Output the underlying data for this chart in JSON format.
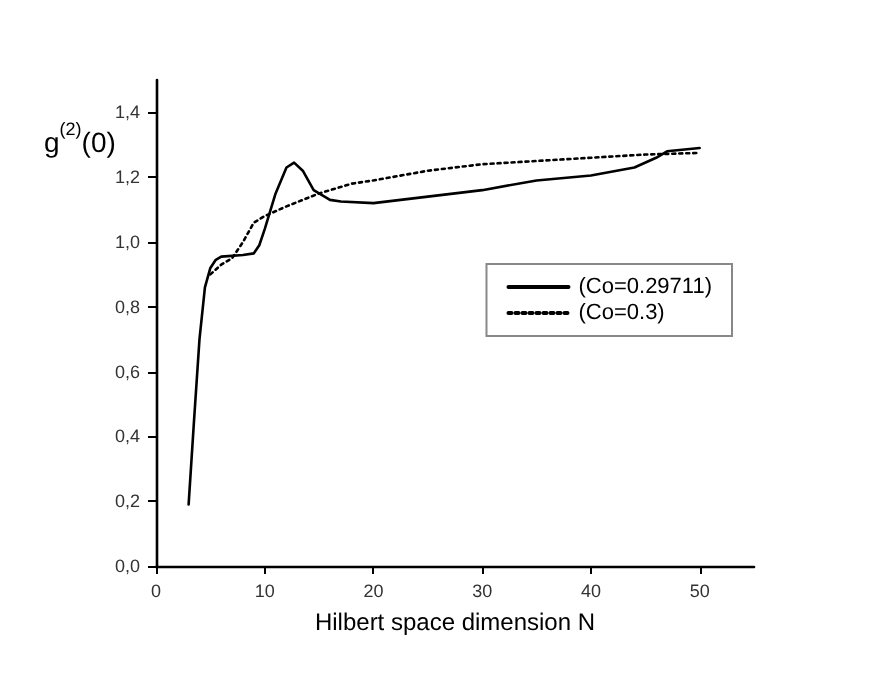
{
  "chart_data": {
    "type": "line",
    "xlabel": "Hilbert space dimension N",
    "ylabel": "g$^{(2)}$(0)",
    "xlim": [
      0,
      55
    ],
    "xticks": [
      0,
      10,
      20,
      30,
      40,
      50
    ],
    "ylim": [
      0,
      1.5
    ],
    "yticks": [
      {
        "value": 0,
        "label": "0,0"
      },
      {
        "value": 0.2,
        "label": "0,2"
      },
      {
        "value": 0.4,
        "label": "0,4"
      },
      {
        "value": 0.6,
        "label": "0,6"
      },
      {
        "value": 0.8,
        "label": "0,8"
      },
      {
        "value": 1.0,
        "label": "1,0"
      },
      {
        "value": 1.2,
        "label": "1,2"
      },
      {
        "value": 1.4,
        "label": "1,4"
      }
    ],
    "grid": false,
    "legend": "right",
    "marker": "none",
    "series": [
      {
        "name": "(Co=0.29711)",
        "color": "#000000",
        "line_style": "solid",
        "x": [
          3,
          3.5,
          4,
          4.5,
          5,
          5.5,
          6,
          8,
          9,
          9.5,
          10,
          11,
          12,
          12.7,
          13.5,
          14.5,
          16,
          17,
          20,
          25,
          30,
          35,
          40,
          44,
          46,
          47,
          50
        ],
        "values": [
          0.19,
          0.45,
          0.7,
          0.86,
          0.92,
          0.945,
          0.955,
          0.96,
          0.965,
          0.99,
          1.04,
          1.15,
          1.23,
          1.245,
          1.22,
          1.16,
          1.13,
          1.125,
          1.12,
          1.14,
          1.16,
          1.19,
          1.205,
          1.23,
          1.26,
          1.28,
          1.29
        ]
      },
      {
        "name": "(Co=0.3)",
        "color": "#000000",
        "line_style": "dotted",
        "x": [
          5,
          6,
          7,
          8,
          9,
          10,
          12,
          15,
          18,
          20,
          25,
          30,
          35,
          40,
          45,
          50
        ],
        "values": [
          0.9,
          0.93,
          0.95,
          1.0,
          1.06,
          1.08,
          1.11,
          1.15,
          1.18,
          1.19,
          1.22,
          1.24,
          1.25,
          1.26,
          1.27,
          1.275
        ]
      }
    ]
  }
}
